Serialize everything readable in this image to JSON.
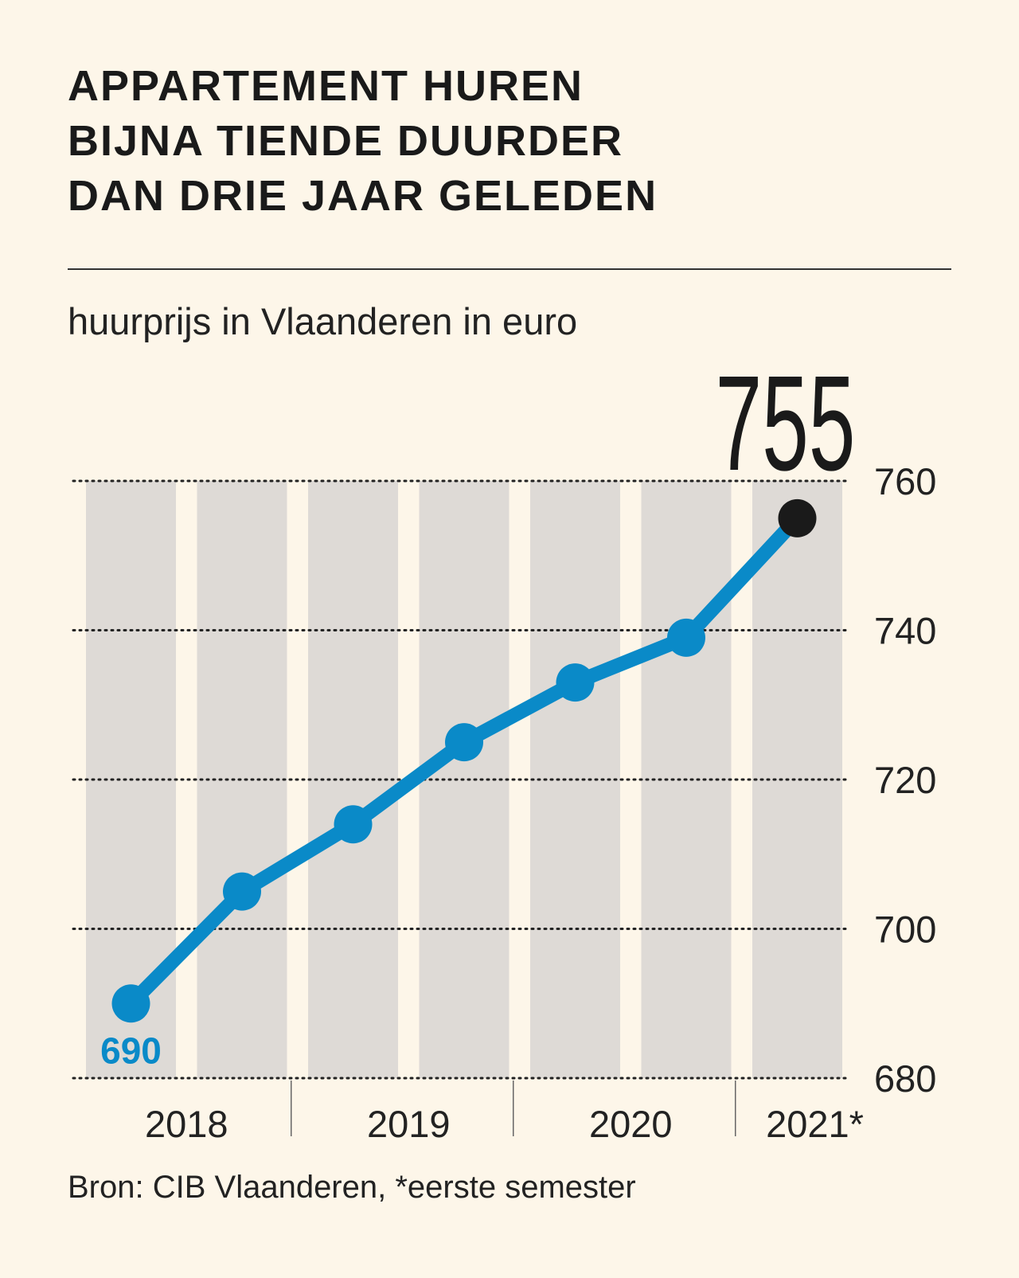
{
  "chart_data": {
    "type": "line",
    "title": [
      "APPARTEMENT HUREN",
      "BIJNA TIENDE DUURDER",
      "DAN DRIE JAAR GELEDEN"
    ],
    "subtitle": "huurprijs in Vlaanderen in euro",
    "groups": [
      "2018",
      "2019",
      "2020",
      "2021*"
    ],
    "values": [
      690,
      705,
      714,
      725,
      733,
      739,
      755
    ],
    "color": "#0a8ac8",
    "last_color": "#1a1a1a",
    "ylim": [
      680,
      760
    ],
    "yticks": [
      680,
      700,
      720,
      740,
      760
    ],
    "grid": true,
    "source": "Bron: CIB Vlaanderen, *eerste semester"
  }
}
